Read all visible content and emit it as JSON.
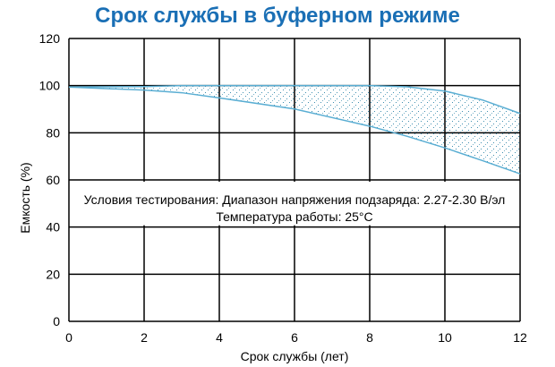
{
  "chart_data": {
    "type": "area",
    "title": "Срок службы в буферном режиме",
    "xlabel": "Срок службы (лет)",
    "ylabel": "Емкость (%)",
    "xlim": [
      0,
      12
    ],
    "ylim": [
      0,
      120
    ],
    "xticks": [
      0,
      2,
      4,
      6,
      8,
      10,
      12
    ],
    "yticks": [
      0,
      20,
      40,
      60,
      80,
      100,
      120
    ],
    "grid": true,
    "annotation": [
      "Условия тестирования: Диапазон напряжения подзаряда: 2.27-2.30 В/эл",
      "Температура работы: 25°C"
    ],
    "series": [
      {
        "x": [
          0,
          2,
          3,
          4,
          6,
          8,
          9,
          10,
          11,
          12
        ],
        "values": [
          99.4,
          99.6,
          100,
          100,
          100,
          100,
          99.5,
          97.7,
          93.9,
          88.2
        ]
      },
      {
        "x": [
          0,
          2,
          3,
          4,
          6,
          8,
          9,
          10,
          11,
          12
        ],
        "values": [
          99.4,
          98.1,
          97,
          94.8,
          90.1,
          82.8,
          78.5,
          73.6,
          68.2,
          62.6
        ]
      }
    ],
    "colors": {
      "title": "#1a6fb5",
      "line": "#5aaed3",
      "fill_dots": "#3f8fb0"
    }
  }
}
